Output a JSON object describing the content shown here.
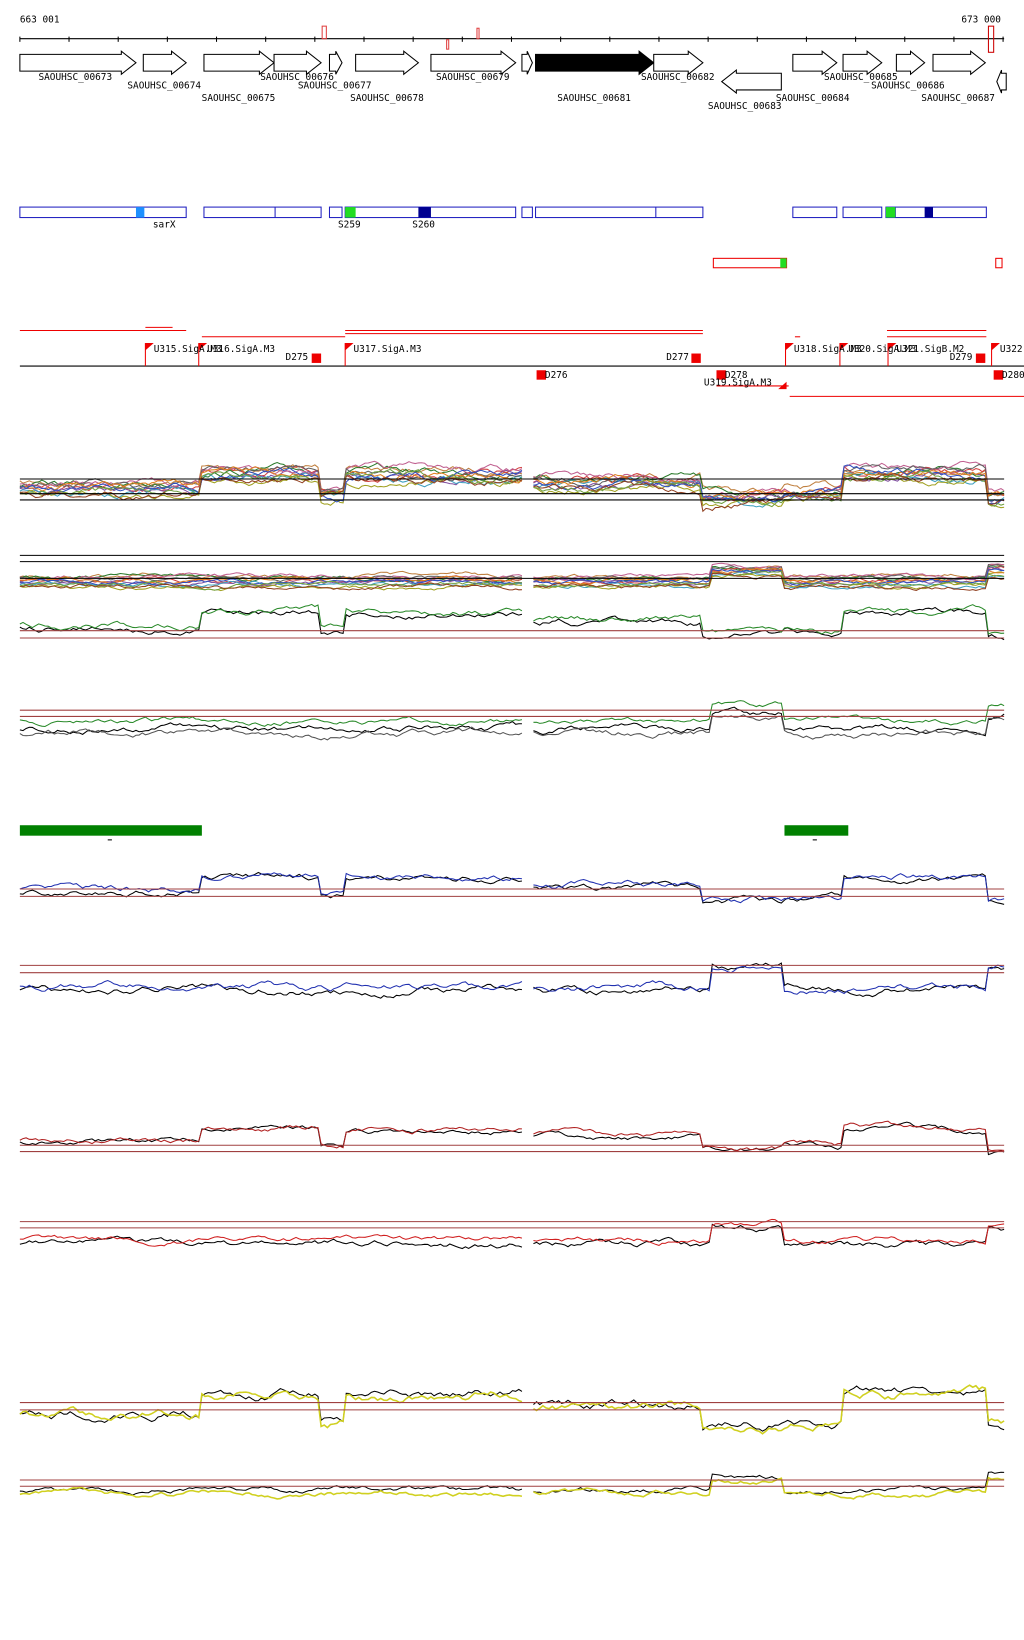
{
  "header": {
    "start": "663 001",
    "end": "673 000"
  },
  "genes": [
    {
      "label": "SAOUHSC_00673"
    },
    {
      "label": "SAOUHSC_00674"
    },
    {
      "label": "SAOUHSC_00675"
    },
    {
      "label": "SAOUHSC_00676"
    },
    {
      "label": "SAOUHSC_00677"
    },
    {
      "label": "SAOUHSC_00678"
    },
    {
      "label": "SAOUHSC_00679"
    },
    {
      "label": "SAOUHSC_00681"
    },
    {
      "label": "SAOUHSC_00682"
    },
    {
      "label": "SAOUHSC_00683"
    },
    {
      "label": "SAOUHSC_00684"
    },
    {
      "label": "SAOUHSC_00685"
    },
    {
      "label": "SAOUHSC_00686"
    },
    {
      "label": "SAOUHSC_00687"
    }
  ],
  "features": [
    {
      "label": "sarX"
    },
    {
      "label": "S259"
    },
    {
      "label": "S260"
    }
  ],
  "regulatory": [
    {
      "label": "U315.SigA.M3"
    },
    {
      "label": "U316.SigA.M3"
    },
    {
      "label": "D275"
    },
    {
      "label": "U317.SigA.M3"
    },
    {
      "label": "D276"
    },
    {
      "label": "D277"
    },
    {
      "label": "D278"
    },
    {
      "label": "U319.SigA.M3"
    },
    {
      "label": "U318.SigA.M3"
    },
    {
      "label": "U320.SigA.M3"
    },
    {
      "label": "U321.SigB.M2"
    },
    {
      "label": "D279"
    },
    {
      "label": "U322"
    },
    {
      "label": "D280"
    }
  ]
}
